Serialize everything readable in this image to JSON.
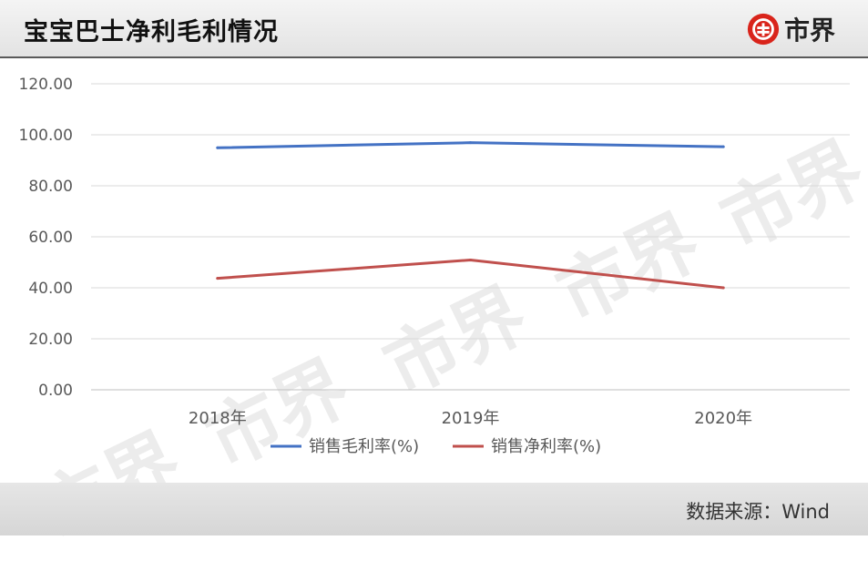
{
  "header": {
    "title": "宝宝巴士净利毛利情况",
    "brand": "市界"
  },
  "footer": {
    "source": "数据来源：Wind"
  },
  "watermark": "市界",
  "chart_data": {
    "type": "line",
    "categories": [
      "2018年",
      "2019年",
      "2020年"
    ],
    "series": [
      {
        "name": "销售毛利率(%)",
        "color": "#4472c4",
        "values": [
          94.9,
          96.9,
          95.3
        ]
      },
      {
        "name": "销售净利率(%)",
        "color": "#c0504d",
        "values": [
          43.7,
          50.9,
          40.0
        ]
      }
    ],
    "ylim": [
      0,
      120
    ],
    "yticks": [
      "0.00",
      "20.00",
      "40.00",
      "60.00",
      "80.00",
      "100.00",
      "120.00"
    ],
    "grid": true,
    "legend": "bottom"
  }
}
